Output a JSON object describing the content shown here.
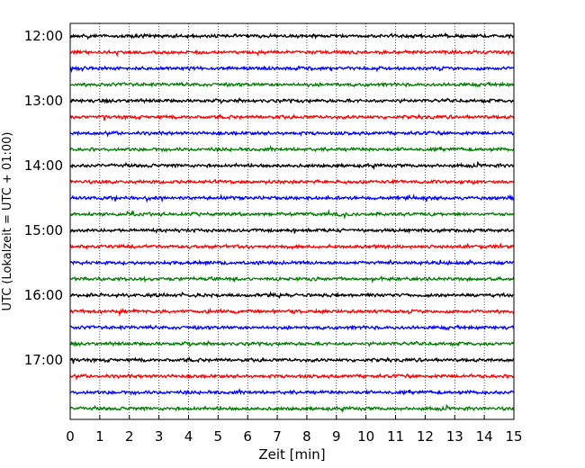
{
  "chart_data": {
    "type": "line",
    "title": "",
    "xlabel": "Zeit  [min]",
    "ylabel": "UTC (Lokalzeit = UTC + 01:00)",
    "xlim": [
      0,
      15
    ],
    "x_ticks": [
      "0",
      "1",
      "2",
      "3",
      "4",
      "5",
      "6",
      "7",
      "8",
      "9",
      "10",
      "11",
      "12",
      "13",
      "14",
      "15"
    ],
    "y_ticks": [
      "12:00",
      "13:00",
      "14:00",
      "15:00",
      "16:00",
      "17:00"
    ],
    "y_range": [
      "11:48",
      "18:00"
    ],
    "grid": "vertical dotted at each minute",
    "trace_interval_min": 15,
    "trace_count": 24,
    "trace_start": "12:00",
    "color_cycle": [
      "#000000",
      "#ff0000",
      "#0000ff",
      "#007f00"
    ],
    "series": [
      {
        "start": "12:00",
        "color": "#000000"
      },
      {
        "start": "12:15",
        "color": "#ff0000"
      },
      {
        "start": "12:30",
        "color": "#0000ff"
      },
      {
        "start": "12:45",
        "color": "#007f00"
      },
      {
        "start": "13:00",
        "color": "#000000"
      },
      {
        "start": "13:15",
        "color": "#ff0000"
      },
      {
        "start": "13:30",
        "color": "#0000ff"
      },
      {
        "start": "13:45",
        "color": "#007f00"
      },
      {
        "start": "14:00",
        "color": "#000000"
      },
      {
        "start": "14:15",
        "color": "#ff0000"
      },
      {
        "start": "14:30",
        "color": "#0000ff"
      },
      {
        "start": "14:45",
        "color": "#007f00"
      },
      {
        "start": "15:00",
        "color": "#000000"
      },
      {
        "start": "15:15",
        "color": "#ff0000"
      },
      {
        "start": "15:30",
        "color": "#0000ff"
      },
      {
        "start": "15:45",
        "color": "#007f00"
      },
      {
        "start": "16:00",
        "color": "#000000"
      },
      {
        "start": "16:15",
        "color": "#ff0000"
      },
      {
        "start": "16:30",
        "color": "#0000ff"
      },
      {
        "start": "16:45",
        "color": "#007f00"
      },
      {
        "start": "17:00",
        "color": "#000000"
      },
      {
        "start": "17:15",
        "color": "#ff0000"
      },
      {
        "start": "17:30",
        "color": "#0000ff"
      },
      {
        "start": "17:45",
        "color": "#007f00"
      }
    ]
  }
}
